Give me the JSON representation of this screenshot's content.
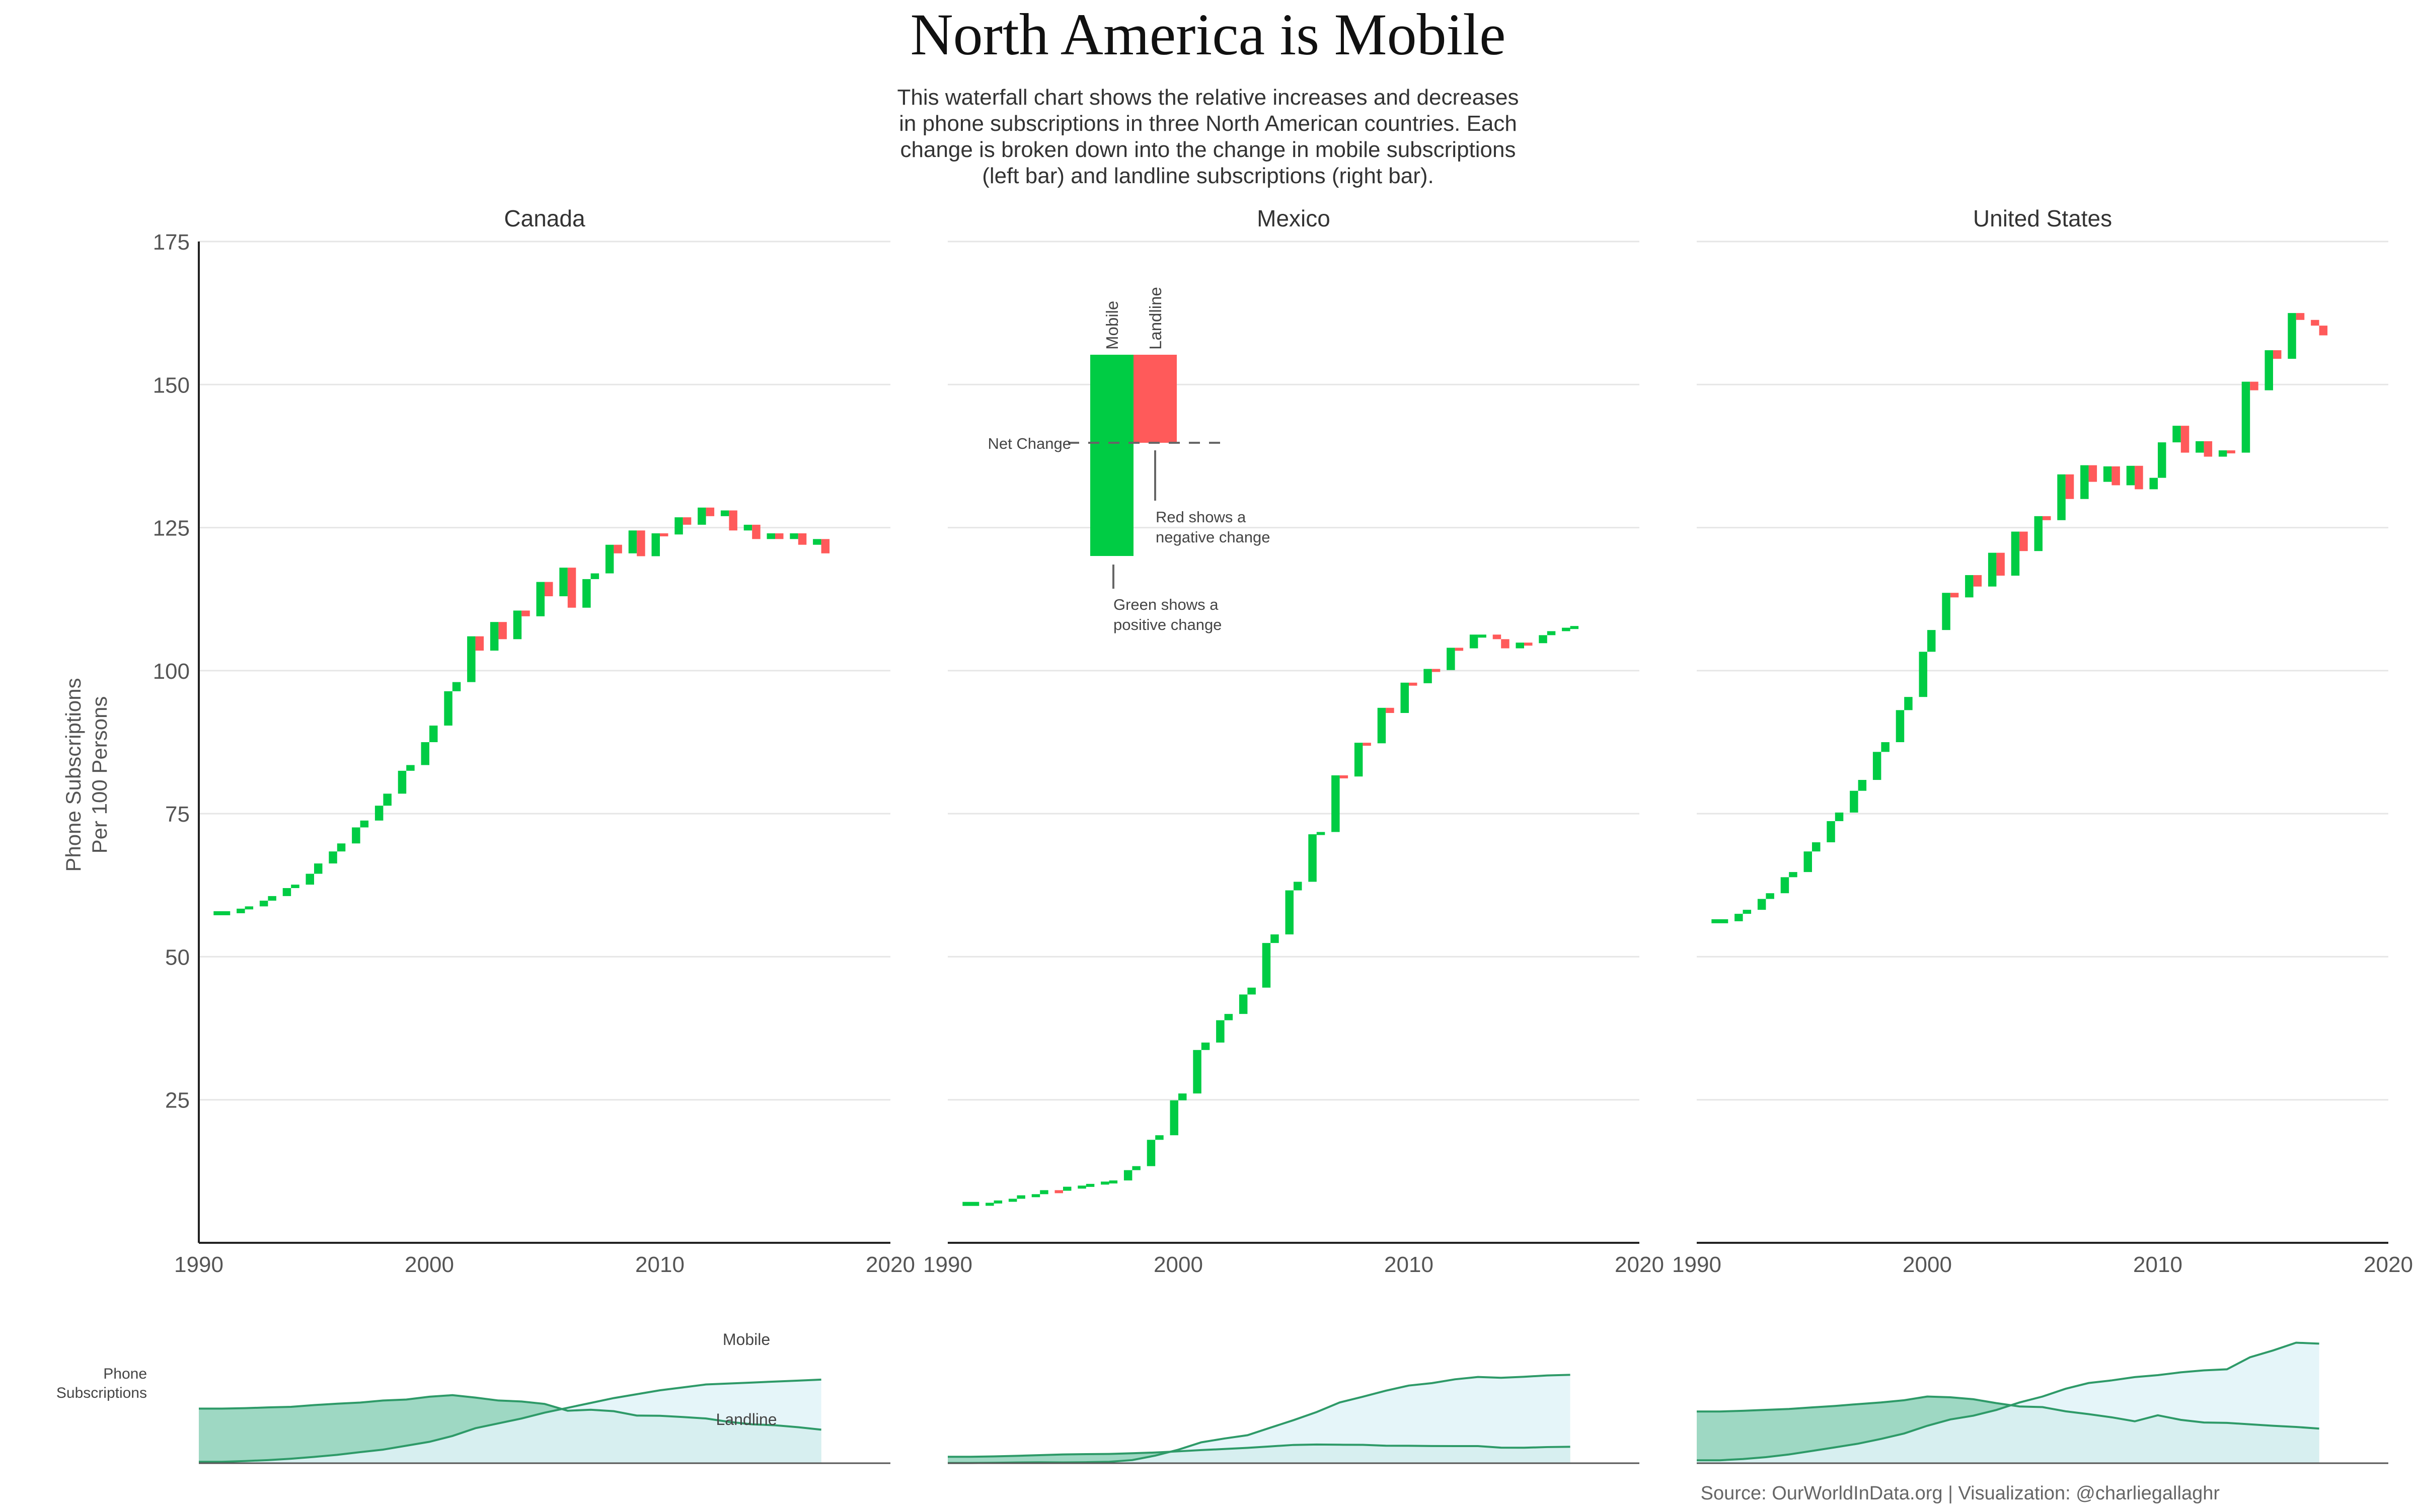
{
  "title": "North America is Mobile",
  "subtitle": [
    "This waterfall chart shows the relative increases and decreases",
    "in phone subscriptions in three North American countries. Each",
    "change is broken down into the change in mobile subscriptions",
    "(left bar) and landline subscriptions (right bar)."
  ],
  "ylabel_line1": "Phone Subscriptions",
  "ylabel_line2": "Per 100 Persons",
  "mini_ylabel_line1": "Phone",
  "mini_ylabel_line2": "Subscriptions",
  "source": "Source: OurWorldInData.org  |  Visualization: @charliegallaghr",
  "legend": {
    "mobile_label": "Mobile",
    "landline_label": "Landline",
    "net_change_label": "Net Change",
    "red_note_line1": "Red shows a",
    "red_note_line2": "negative change",
    "green_note_line1": "Green shows a",
    "green_note_line2": "positive change"
  },
  "colors": {
    "positive": "#00cc44",
    "negative": "#ff5a5a",
    "grid": "#e6e6e6",
    "axis": "#222222",
    "text": "#444444",
    "area_landline": "#99d6c0",
    "area_mobile": "#e0f3f8",
    "line": "#2e9a68"
  },
  "chart_data": {
    "type": "waterfall",
    "x_ticks": [
      1990,
      2000,
      2010,
      2020
    ],
    "y_ticks": [
      25,
      50,
      75,
      100,
      125,
      150,
      175
    ],
    "xlim": [
      1990,
      2020
    ],
    "ylim": [
      0,
      175
    ],
    "panels": [
      {
        "name": "Canada",
        "years": [
          1991,
          1992,
          1993,
          1994,
          1995,
          1996,
          1997,
          1998,
          1999,
          2000,
          2001,
          2002,
          2003,
          2004,
          2005,
          2006,
          2007,
          2008,
          2009,
          2010,
          2011,
          2012,
          2013,
          2014,
          2015,
          2016,
          2017
        ],
        "mobile": [
          1.4,
          2.2,
          3.2,
          4.6,
          6.5,
          8.6,
          11.4,
          14.0,
          18.0,
          22.0,
          28.0,
          36.0,
          41.0,
          46.0,
          52.0,
          57.0,
          62.0,
          67.0,
          71.0,
          75.0,
          78.0,
          81.0,
          82.0,
          83.0,
          84.0,
          85.0,
          86.0
        ],
        "landline": [
          56.2,
          56.6,
          57.4,
          58.0,
          59.8,
          61.2,
          62.4,
          64.5,
          65.5,
          68.4,
          70.0,
          67.5,
          64.5,
          63.5,
          61.0,
          54.0,
          55.0,
          53.5,
          49.0,
          48.8,
          47.5,
          46.0,
          42.5,
          40.0,
          39.0,
          37.0,
          34.5
        ]
      },
      {
        "name": "Mexico",
        "years": [
          1991,
          1992,
          1993,
          1994,
          1995,
          1996,
          1997,
          1998,
          1999,
          2000,
          2001,
          2002,
          2003,
          2004,
          2005,
          2006,
          2007,
          2008,
          2009,
          2010,
          2011,
          2012,
          2013,
          2014,
          2015,
          2016,
          2017
        ],
        "mobile": [
          0.2,
          0.4,
          0.7,
          0.9,
          0.8,
          1.0,
          1.4,
          3.2,
          7.8,
          13.9,
          21.5,
          25.4,
          28.8,
          36.6,
          44.3,
          52.6,
          62.5,
          68.4,
          74.6,
          79.9,
          82.4,
          86.3,
          88.7,
          87.9,
          88.9,
          90.3,
          90.9
        ],
        "landline": [
          6.6,
          7.0,
          7.6,
          8.3,
          9.0,
          9.3,
          9.5,
          10.2,
          11.0,
          12.2,
          13.5,
          14.6,
          15.8,
          17.3,
          18.8,
          19.2,
          19.0,
          18.9,
          18.0,
          17.9,
          17.7,
          17.6,
          17.6,
          16.0,
          15.9,
          16.6,
          16.9
        ]
      },
      {
        "name": "United States",
        "years": [
          1991,
          1992,
          1993,
          1994,
          1995,
          1996,
          1997,
          1998,
          1999,
          2000,
          2001,
          2002,
          2003,
          2004,
          2005,
          2006,
          2007,
          2008,
          2009,
          2010,
          2011,
          2012,
          2013,
          2014,
          2015,
          2016,
          2017
        ],
        "mobile": [
          3.0,
          4.3,
          6.2,
          9.0,
          12.6,
          16.3,
          20.1,
          25.0,
          30.6,
          38.5,
          45.0,
          48.9,
          54.8,
          62.5,
          68.6,
          76.6,
          82.5,
          85.2,
          88.6,
          90.6,
          93.5,
          95.5,
          96.6,
          109.0,
          116.0,
          124.0,
          123.0
        ],
        "landline": [
          53.2,
          53.9,
          54.9,
          55.8,
          57.4,
          58.9,
          60.8,
          62.5,
          64.8,
          68.6,
          67.8,
          65.8,
          61.8,
          58.4,
          57.7,
          53.4,
          50.5,
          47.2,
          43.1,
          49.3,
          44.6,
          41.9,
          41.5,
          40.0,
          38.5,
          37.3,
          35.6
        ]
      }
    ]
  }
}
